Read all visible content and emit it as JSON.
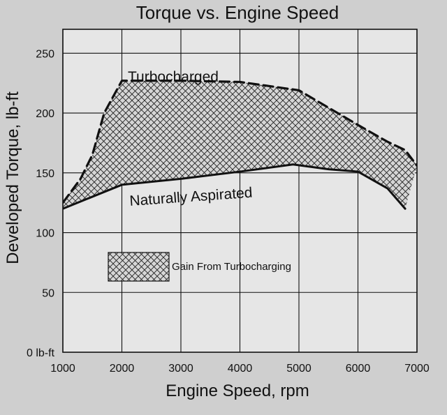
{
  "chart_data": {
    "type": "area",
    "title": "Torque vs. Engine Speed",
    "xlabel": "Engine Speed, rpm",
    "ylabel": "Developed Torque, lb-ft",
    "xlim": [
      1000,
      7000
    ],
    "ylim": [
      0,
      270
    ],
    "x_ticks": [
      1000,
      2000,
      3000,
      4000,
      5000,
      6000,
      7000
    ],
    "x_tick_labels": [
      "1000",
      "2000",
      "3000",
      "4000",
      "5000",
      "6000",
      "7000"
    ],
    "y_ticks": [
      0,
      50,
      100,
      150,
      200,
      250
    ],
    "y_tick_labels": [
      "0 lb-ft",
      "50",
      "100",
      "150",
      "200",
      "250"
    ],
    "grid": true,
    "series": [
      {
        "name": "Turbocharged",
        "line_style": "dashed",
        "x": [
          1000,
          1300,
          1500,
          1700,
          2000,
          3000,
          4000,
          5000,
          6000,
          6500,
          6800,
          7000
        ],
        "y": [
          125,
          145,
          165,
          200,
          227,
          227,
          226,
          219,
          190,
          176,
          169,
          156
        ]
      },
      {
        "name": "Naturally Aspirated",
        "line_style": "solid",
        "x": [
          1000,
          1500,
          2000,
          3000,
          4000,
          4900,
          5500,
          6000,
          6500,
          6800
        ],
        "y": [
          120,
          130,
          140,
          145,
          151,
          157,
          153,
          151,
          137,
          120
        ]
      }
    ],
    "fill_between": {
      "upper": "Turbocharged",
      "lower": "Naturally Aspirated",
      "pattern": "crosshatch",
      "legend_label": "Gain From Turbocharging"
    },
    "colors": {
      "background": "#cfcfcf",
      "plot_background": "#e6e6e6",
      "lines": "#111111",
      "grid": "#111111"
    }
  }
}
